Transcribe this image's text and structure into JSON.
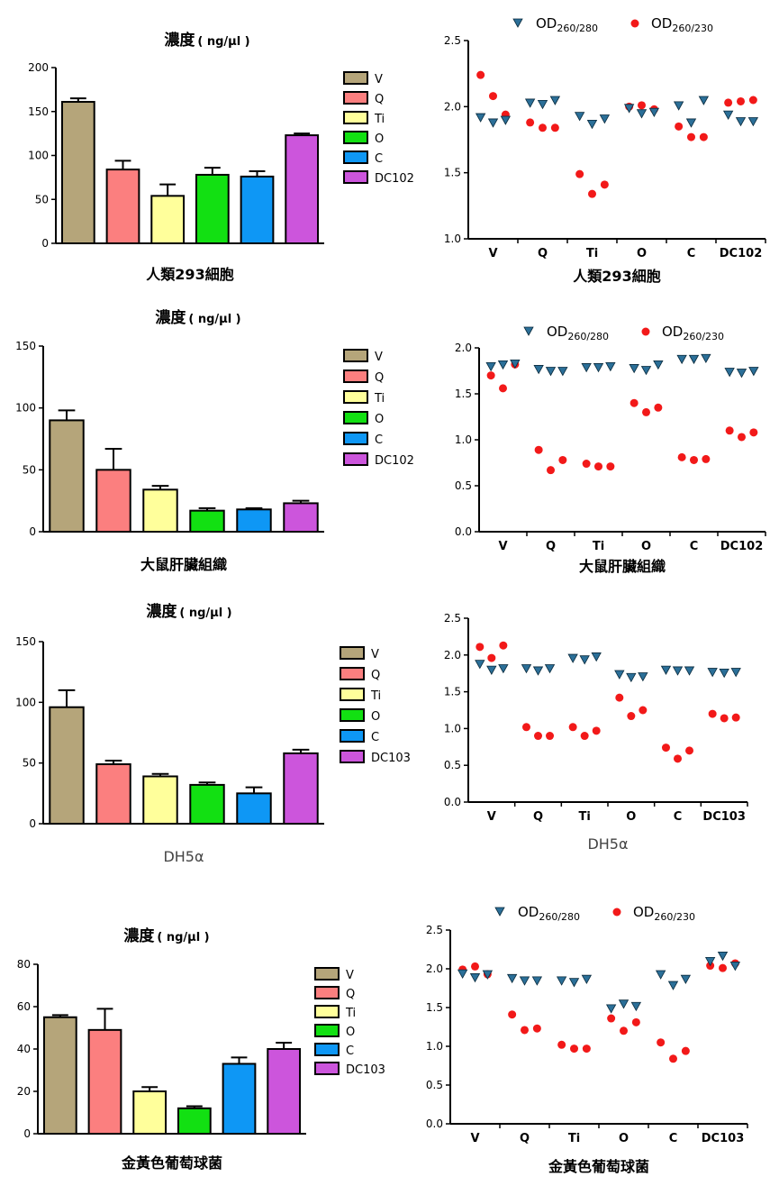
{
  "colors": {
    "V": "#b5a57a",
    "Q": "#fb7f7f",
    "Ti": "#ffff9b",
    "O": "#12e012",
    "C": "#0e97f5",
    "DC": "#cc55dc",
    "od280": "#2b6f98",
    "od230": "#f21919"
  },
  "chart_data": [
    {
      "type": "bar",
      "title_main": "濃度",
      "title_unit": "( ng/µl )",
      "caption": "人類293細胞",
      "categories": [
        "V",
        "Q",
        "Ti",
        "O",
        "C",
        "DC102"
      ],
      "values": [
        161,
        84,
        54,
        78,
        76,
        123
      ],
      "errors": [
        4,
        10,
        13,
        8,
        6,
        2
      ],
      "ylim": [
        0,
        200
      ],
      "yticks": [
        0,
        50,
        100,
        150,
        200
      ],
      "legend": [
        "V",
        "Q",
        "Ti",
        "O",
        "C",
        "DC102"
      ]
    },
    {
      "type": "scatter",
      "caption": "人類293細胞",
      "categories": [
        "V",
        "Q",
        "Ti",
        "O",
        "C",
        "DC102"
      ],
      "ylim": [
        1.0,
        2.5
      ],
      "yticks": [
        "1.0",
        "1.5",
        "2.0",
        "2.5"
      ],
      "series": [
        {
          "name": "OD260/280",
          "values": [
            [
              1.92,
              1.88,
              1.9
            ],
            [
              2.03,
              2.02,
              2.05
            ],
            [
              1.93,
              1.87,
              1.91
            ],
            [
              1.99,
              1.95,
              1.96
            ],
            [
              2.01,
              1.88,
              2.05
            ],
            [
              1.94,
              1.89,
              1.89
            ]
          ]
        },
        {
          "name": "OD260/230",
          "values": [
            [
              2.24,
              2.08,
              1.94
            ],
            [
              1.88,
              1.84,
              1.84
            ],
            [
              1.49,
              1.34,
              1.41
            ],
            [
              2.0,
              2.01,
              1.98
            ],
            [
              1.85,
              1.77,
              1.77
            ],
            [
              2.03,
              2.04,
              2.05
            ]
          ]
        }
      ]
    },
    {
      "type": "bar",
      "title_main": "濃度",
      "title_unit": "( ng/µl )",
      "caption": "大鼠肝臟組織",
      "categories": [
        "V",
        "Q",
        "Ti",
        "O",
        "C",
        "DC102"
      ],
      "values": [
        90,
        50,
        34,
        17,
        18,
        23
      ],
      "errors": [
        8,
        17,
        3,
        2,
        1,
        2
      ],
      "ylim": [
        0,
        150
      ],
      "yticks": [
        0,
        50,
        100,
        150
      ],
      "legend": [
        "V",
        "Q",
        "Ti",
        "O",
        "C",
        "DC102"
      ]
    },
    {
      "type": "scatter",
      "caption": "大鼠肝臟組織",
      "categories": [
        "V",
        "Q",
        "Ti",
        "O",
        "C",
        "DC102"
      ],
      "ylim": [
        0.0,
        2.0
      ],
      "yticks": [
        "0.0",
        "0.5",
        "1.0",
        "1.5",
        "2.0"
      ],
      "series": [
        {
          "name": "OD260/280",
          "values": [
            [
              1.8,
              1.82,
              1.83
            ],
            [
              1.77,
              1.75,
              1.75
            ],
            [
              1.79,
              1.79,
              1.8
            ],
            [
              1.78,
              1.76,
              1.82
            ],
            [
              1.88,
              1.88,
              1.89
            ],
            [
              1.74,
              1.73,
              1.75
            ]
          ]
        },
        {
          "name": "OD260/230",
          "values": [
            [
              1.7,
              1.56,
              1.82
            ],
            [
              0.89,
              0.67,
              0.78
            ],
            [
              0.74,
              0.71,
              0.71
            ],
            [
              1.4,
              1.3,
              1.35
            ],
            [
              0.81,
              0.78,
              0.79
            ],
            [
              1.1,
              1.03,
              1.08
            ]
          ]
        }
      ]
    },
    {
      "type": "bar",
      "title_main": "濃度",
      "title_unit": "( ng/µl )",
      "caption": "DH5α",
      "categories": [
        "V",
        "Q",
        "Ti",
        "O",
        "C",
        "DC103"
      ],
      "values": [
        96,
        49,
        39,
        32,
        25,
        58
      ],
      "errors": [
        14,
        3,
        2,
        2,
        5,
        3
      ],
      "ylim": [
        0,
        150
      ],
      "yticks": [
        0,
        50,
        100,
        150
      ],
      "legend": [
        "V",
        "Q",
        "Ti",
        "O",
        "C",
        "DC103"
      ]
    },
    {
      "type": "scatter",
      "caption": "DH5α",
      "categories": [
        "V",
        "Q",
        "Ti",
        "O",
        "C",
        "DC103"
      ],
      "ylim": [
        0.0,
        2.5
      ],
      "yticks": [
        "0.0",
        "0.5",
        "1.0",
        "1.5",
        "2.0",
        "2.5"
      ],
      "series": [
        {
          "name": "OD260/280",
          "values": [
            [
              1.88,
              1.8,
              1.82
            ],
            [
              1.82,
              1.79,
              1.82
            ],
            [
              1.96,
              1.94,
              1.98
            ],
            [
              1.74,
              1.7,
              1.71
            ],
            [
              1.8,
              1.79,
              1.79
            ],
            [
              1.77,
              1.76,
              1.77
            ]
          ]
        },
        {
          "name": "OD260/230",
          "values": [
            [
              2.11,
              1.96,
              2.13
            ],
            [
              1.02,
              0.9,
              0.9
            ],
            [
              1.02,
              0.9,
              0.97
            ],
            [
              1.42,
              1.17,
              1.25
            ],
            [
              0.74,
              0.59,
              0.7
            ],
            [
              1.2,
              1.14,
              1.15
            ]
          ]
        }
      ]
    },
    {
      "type": "bar",
      "title_main": "濃度",
      "title_unit": "( ng/µl )",
      "caption": "金黃色葡萄球菌",
      "categories": [
        "V",
        "Q",
        "Ti",
        "O",
        "C",
        "DC103"
      ],
      "values": [
        55,
        49,
        20,
        12,
        33,
        40
      ],
      "errors": [
        1,
        10,
        2,
        1,
        3,
        3
      ],
      "ylim": [
        0,
        80
      ],
      "yticks": [
        0,
        20,
        40,
        60,
        80
      ],
      "legend": [
        "V",
        "Q",
        "Ti",
        "O",
        "C",
        "DC103"
      ]
    },
    {
      "type": "scatter",
      "caption": "金黃色葡萄球菌",
      "categories": [
        "V",
        "Q",
        "Ti",
        "O",
        "C",
        "DC103"
      ],
      "ylim": [
        0.0,
        2.5
      ],
      "yticks": [
        "0.0",
        "0.5",
        "1.0",
        "1.5",
        "2.0",
        "2.5"
      ],
      "series": [
        {
          "name": "OD260/280",
          "values": [
            [
              1.94,
              1.89,
              1.93
            ],
            [
              1.88,
              1.85,
              1.85
            ],
            [
              1.85,
              1.83,
              1.87
            ],
            [
              1.49,
              1.55,
              1.52
            ],
            [
              1.93,
              1.79,
              1.87
            ],
            [
              2.1,
              2.17,
              2.04
            ]
          ]
        },
        {
          "name": "OD260/230",
          "values": [
            [
              1.99,
              2.03,
              1.93
            ],
            [
              1.41,
              1.21,
              1.23
            ],
            [
              1.02,
              0.97,
              0.97
            ],
            [
              1.36,
              1.2,
              1.31
            ],
            [
              1.05,
              0.84,
              0.94
            ],
            [
              2.04,
              2.01,
              2.07
            ]
          ]
        }
      ]
    }
  ]
}
